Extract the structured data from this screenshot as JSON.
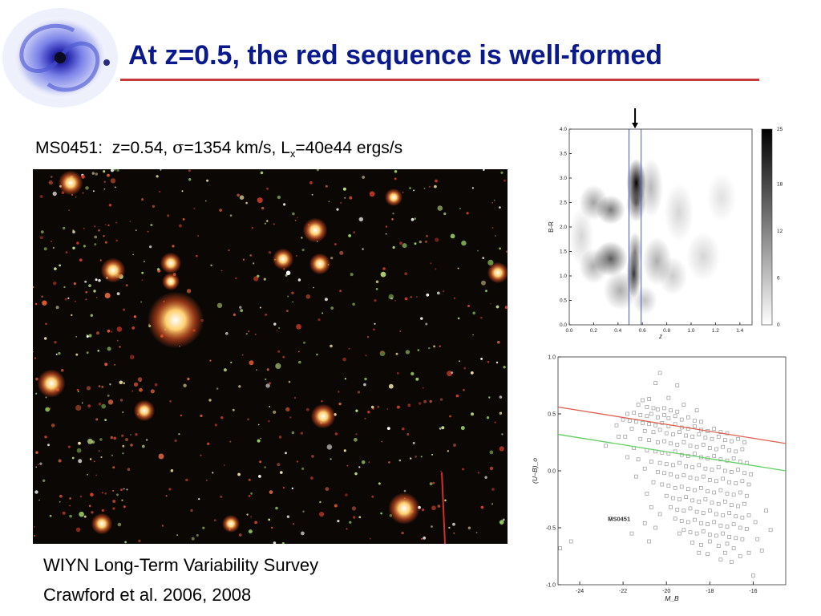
{
  "slide": {
    "title": "At z=0.5, the red sequence is well-formed",
    "caption": {
      "cluster": "MS0451:",
      "redshift": "z=0.54,",
      "sigma_symbol": "σ",
      "sigma": "=1354 km/s, L",
      "lx_sub": "x",
      "lx": "=40e44 ergs/s"
    },
    "credit_line1": "WIYN Long-Term Variability Survey",
    "credit_line2": "Crawford et al.  2006, 2008"
  },
  "colors": {
    "title": "#0a1a8c",
    "rule": "#c83a3a",
    "red_line": "#e06050",
    "green_line": "#60d060",
    "cut_line": "#4a5ad0"
  },
  "chart_data": [
    {
      "type": "heatmap",
      "xlabel": "z",
      "ylabel": "B-R",
      "xlim": [
        0.0,
        1.5
      ],
      "ylim": [
        0.0,
        4.0
      ],
      "x_ticks": [
        "0.0",
        "0.2",
        "0.4",
        "0.6",
        "0.8",
        "1.0",
        "1.2",
        "1.4"
      ],
      "y_ticks": [
        "0.0",
        "0.5",
        "1.0",
        "1.5",
        "2.0",
        "2.5",
        "3.0",
        "3.5",
        "4.0"
      ],
      "colorbar_ticks": [
        "0",
        "6",
        "12",
        "18",
        "25"
      ],
      "colorbar_range": [
        0,
        25
      ],
      "redshift_cuts": [
        0.49,
        0.59
      ],
      "marker_z": 0.54,
      "blobs": [
        {
          "z": 0.55,
          "br": 2.9,
          "sz": 0.04,
          "sbr": 0.25,
          "v": 25
        },
        {
          "z": 0.55,
          "br": 2.5,
          "sz": 0.04,
          "sbr": 0.2,
          "v": 15
        },
        {
          "z": 0.53,
          "br": 1.05,
          "sz": 0.03,
          "sbr": 0.25,
          "v": 20
        },
        {
          "z": 0.54,
          "br": 1.5,
          "sz": 0.03,
          "sbr": 0.2,
          "v": 12
        },
        {
          "z": 0.34,
          "br": 1.35,
          "sz": 0.07,
          "sbr": 0.18,
          "v": 16
        },
        {
          "z": 0.34,
          "br": 2.35,
          "sz": 0.06,
          "sbr": 0.15,
          "v": 13
        },
        {
          "z": 0.2,
          "br": 2.5,
          "sz": 0.06,
          "sbr": 0.18,
          "v": 9
        },
        {
          "z": 0.2,
          "br": 1.2,
          "sz": 0.06,
          "sbr": 0.18,
          "v": 8
        },
        {
          "z": 0.42,
          "br": 0.7,
          "sz": 0.07,
          "sbr": 0.2,
          "v": 8
        },
        {
          "z": 0.67,
          "br": 2.8,
          "sz": 0.05,
          "sbr": 0.3,
          "v": 7
        },
        {
          "z": 0.72,
          "br": 1.3,
          "sz": 0.06,
          "sbr": 0.25,
          "v": 8
        },
        {
          "z": 0.62,
          "br": 0.5,
          "sz": 0.05,
          "sbr": 0.15,
          "v": 6
        },
        {
          "z": 0.85,
          "br": 1.0,
          "sz": 0.06,
          "sbr": 0.2,
          "v": 5
        },
        {
          "z": 0.9,
          "br": 2.3,
          "sz": 0.06,
          "sbr": 0.3,
          "v": 4
        },
        {
          "z": 1.1,
          "br": 1.4,
          "sz": 0.07,
          "sbr": 0.25,
          "v": 4
        },
        {
          "z": 0.1,
          "br": 1.8,
          "sz": 0.05,
          "sbr": 0.3,
          "v": 4
        },
        {
          "z": 1.25,
          "br": 2.6,
          "sz": 0.06,
          "sbr": 0.25,
          "v": 3
        }
      ]
    },
    {
      "type": "scatter",
      "xlabel": "M_B",
      "ylabel": "(U−B)_o",
      "xlim": [
        -25,
        -14.5
      ],
      "ylim": [
        -1.0,
        1.0
      ],
      "x_ticks": [
        -24,
        -22,
        -20,
        -18,
        -16
      ],
      "y_ticks": [
        1.0,
        0.5,
        0.0,
        -0.5,
        -1.0
      ],
      "annotation": "MS0451",
      "red_line": {
        "x": [
          -25,
          -14.5
        ],
        "y": [
          0.56,
          0.24
        ]
      },
      "green_line": {
        "x": [
          -25,
          -14.5
        ],
        "y": [
          0.32,
          0.0
        ]
      },
      "points": [
        [
          -20.3,
          0.86
        ],
        [
          -20.5,
          0.77
        ],
        [
          -19.5,
          0.75
        ],
        [
          -21.3,
          0.58
        ],
        [
          -20.9,
          0.56
        ],
        [
          -20.6,
          0.55
        ],
        [
          -20.4,
          0.54
        ],
        [
          -20.1,
          0.55
        ],
        [
          -19.8,
          0.53
        ],
        [
          -19.5,
          0.52
        ],
        [
          -21.8,
          0.5
        ],
        [
          -21.5,
          0.51
        ],
        [
          -21.2,
          0.49
        ],
        [
          -20.9,
          0.48
        ],
        [
          -20.7,
          0.5
        ],
        [
          -20.4,
          0.47
        ],
        [
          -20.1,
          0.49
        ],
        [
          -19.9,
          0.46
        ],
        [
          -19.6,
          0.48
        ],
        [
          -19.3,
          0.45
        ],
        [
          -19.0,
          0.47
        ],
        [
          -18.7,
          0.44
        ],
        [
          -18.4,
          0.43
        ],
        [
          -22.0,
          0.45
        ],
        [
          -21.7,
          0.44
        ],
        [
          -21.4,
          0.43
        ],
        [
          -21.1,
          0.42
        ],
        [
          -20.8,
          0.41
        ],
        [
          -20.5,
          0.4
        ],
        [
          -20.2,
          0.42
        ],
        [
          -19.9,
          0.39
        ],
        [
          -19.6,
          0.41
        ],
        [
          -19.3,
          0.38
        ],
        [
          -19.0,
          0.37
        ],
        [
          -18.7,
          0.39
        ],
        [
          -18.4,
          0.36
        ],
        [
          -18.1,
          0.35
        ],
        [
          -17.8,
          0.37
        ],
        [
          -17.5,
          0.34
        ],
        [
          -17.2,
          0.33
        ],
        [
          -22.3,
          0.4
        ],
        [
          -21.6,
          0.37
        ],
        [
          -21.0,
          0.35
        ],
        [
          -20.6,
          0.34
        ],
        [
          -20.3,
          0.36
        ],
        [
          -20.0,
          0.33
        ],
        [
          -19.7,
          0.32
        ],
        [
          -19.4,
          0.34
        ],
        [
          -19.1,
          0.31
        ],
        [
          -18.8,
          0.3
        ],
        [
          -18.5,
          0.32
        ],
        [
          -18.2,
          0.29
        ],
        [
          -17.9,
          0.28
        ],
        [
          -17.6,
          0.3
        ],
        [
          -17.3,
          0.27
        ],
        [
          -17.0,
          0.26
        ],
        [
          -16.7,
          0.28
        ],
        [
          -16.4,
          0.25
        ],
        [
          -21.9,
          0.3
        ],
        [
          -21.2,
          0.28
        ],
        [
          -20.8,
          0.27
        ],
        [
          -20.4,
          0.25
        ],
        [
          -20.1,
          0.26
        ],
        [
          -19.8,
          0.24
        ],
        [
          -19.5,
          0.23
        ],
        [
          -19.2,
          0.25
        ],
        [
          -18.9,
          0.22
        ],
        [
          -18.6,
          0.21
        ],
        [
          -18.3,
          0.23
        ],
        [
          -18.0,
          0.2
        ],
        [
          -17.7,
          0.19
        ],
        [
          -17.4,
          0.21
        ],
        [
          -17.1,
          0.18
        ],
        [
          -16.8,
          0.17
        ],
        [
          -16.5,
          0.19
        ],
        [
          -22.8,
          0.22
        ],
        [
          -21.5,
          0.2
        ],
        [
          -20.9,
          0.18
        ],
        [
          -20.5,
          0.17
        ],
        [
          -20.2,
          0.16
        ],
        [
          -19.9,
          0.15
        ],
        [
          -19.6,
          0.17
        ],
        [
          -19.3,
          0.14
        ],
        [
          -19.0,
          0.13
        ],
        [
          -18.7,
          0.15
        ],
        [
          -18.4,
          0.12
        ],
        [
          -18.1,
          0.11
        ],
        [
          -17.8,
          0.13
        ],
        [
          -17.5,
          0.1
        ],
        [
          -17.2,
          0.09
        ],
        [
          -16.9,
          0.11
        ],
        [
          -16.6,
          0.08
        ],
        [
          -16.3,
          0.07
        ],
        [
          -21.3,
          0.1
        ],
        [
          -20.7,
          0.08
        ],
        [
          -20.3,
          0.07
        ],
        [
          -20.0,
          0.06
        ],
        [
          -19.7,
          0.05
        ],
        [
          -19.4,
          0.07
        ],
        [
          -19.1,
          0.04
        ],
        [
          -18.8,
          0.03
        ],
        [
          -18.5,
          0.05
        ],
        [
          -18.2,
          0.02
        ],
        [
          -17.9,
          0.01
        ],
        [
          -17.6,
          0.03
        ],
        [
          -17.3,
          0.0
        ],
        [
          -17.0,
          -0.01
        ],
        [
          -16.7,
          0.01
        ],
        [
          -16.4,
          -0.02
        ],
        [
          -16.1,
          -0.03
        ],
        [
          -21.0,
          0.02
        ],
        [
          -20.4,
          -0.01
        ],
        [
          -20.1,
          -0.02
        ],
        [
          -19.8,
          -0.03
        ],
        [
          -19.5,
          -0.05
        ],
        [
          -19.2,
          -0.04
        ],
        [
          -18.9,
          -0.06
        ],
        [
          -18.6,
          -0.07
        ],
        [
          -18.3,
          -0.05
        ],
        [
          -18.0,
          -0.08
        ],
        [
          -17.7,
          -0.09
        ],
        [
          -17.4,
          -0.07
        ],
        [
          -17.1,
          -0.1
        ],
        [
          -16.8,
          -0.11
        ],
        [
          -16.5,
          -0.09
        ],
        [
          -16.2,
          -0.12
        ],
        [
          -20.6,
          -0.1
        ],
        [
          -20.2,
          -0.12
        ],
        [
          -19.9,
          -0.13
        ],
        [
          -19.6,
          -0.15
        ],
        [
          -19.3,
          -0.14
        ],
        [
          -19.0,
          -0.16
        ],
        [
          -18.7,
          -0.17
        ],
        [
          -18.4,
          -0.15
        ],
        [
          -18.1,
          -0.18
        ],
        [
          -17.8,
          -0.19
        ],
        [
          -17.5,
          -0.17
        ],
        [
          -17.2,
          -0.2
        ],
        [
          -16.9,
          -0.21
        ],
        [
          -16.6,
          -0.19
        ],
        [
          -16.3,
          -0.22
        ],
        [
          -20.0,
          -0.22
        ],
        [
          -19.7,
          -0.24
        ],
        [
          -19.4,
          -0.25
        ],
        [
          -19.1,
          -0.23
        ],
        [
          -18.8,
          -0.26
        ],
        [
          -18.5,
          -0.27
        ],
        [
          -18.2,
          -0.25
        ],
        [
          -17.9,
          -0.28
        ],
        [
          -17.6,
          -0.29
        ],
        [
          -17.3,
          -0.27
        ],
        [
          -17.0,
          -0.3
        ],
        [
          -16.7,
          -0.31
        ],
        [
          -16.4,
          -0.29
        ],
        [
          -19.8,
          -0.32
        ],
        [
          -19.5,
          -0.34
        ],
        [
          -19.2,
          -0.35
        ],
        [
          -18.9,
          -0.33
        ],
        [
          -18.6,
          -0.36
        ],
        [
          -18.3,
          -0.37
        ],
        [
          -18.0,
          -0.35
        ],
        [
          -17.7,
          -0.38
        ],
        [
          -17.4,
          -0.39
        ],
        [
          -17.1,
          -0.37
        ],
        [
          -16.8,
          -0.4
        ],
        [
          -16.5,
          -0.41
        ],
        [
          -16.2,
          -0.39
        ],
        [
          -19.6,
          -0.42
        ],
        [
          -19.3,
          -0.44
        ],
        [
          -19.0,
          -0.45
        ],
        [
          -18.7,
          -0.43
        ],
        [
          -18.4,
          -0.46
        ],
        [
          -18.1,
          -0.47
        ],
        [
          -17.8,
          -0.45
        ],
        [
          -17.5,
          -0.48
        ],
        [
          -17.2,
          -0.49
        ],
        [
          -16.9,
          -0.47
        ],
        [
          -16.6,
          -0.5
        ],
        [
          -16.3,
          -0.51
        ],
        [
          -19.2,
          -0.52
        ],
        [
          -18.9,
          -0.54
        ],
        [
          -18.6,
          -0.55
        ],
        [
          -18.3,
          -0.53
        ],
        [
          -18.0,
          -0.56
        ],
        [
          -17.7,
          -0.57
        ],
        [
          -17.4,
          -0.55
        ],
        [
          -17.1,
          -0.58
        ],
        [
          -16.8,
          -0.59
        ],
        [
          -16.5,
          -0.6
        ],
        [
          -18.8,
          -0.63
        ],
        [
          -18.4,
          -0.65
        ],
        [
          -18.0,
          -0.62
        ],
        [
          -17.6,
          -0.66
        ],
        [
          -17.2,
          -0.64
        ],
        [
          -16.9,
          -0.68
        ],
        [
          -18.1,
          -0.73
        ],
        [
          -17.5,
          -0.78
        ],
        [
          -16.2,
          -0.72
        ],
        [
          -15.8,
          -0.6
        ],
        [
          -15.6,
          -0.7
        ],
        [
          -16.0,
          -0.92
        ],
        [
          -17.0,
          -0.8
        ],
        [
          -22.6,
          -0.42
        ],
        [
          -24.4,
          -0.62
        ],
        [
          -24.9,
          -0.68
        ],
        [
          -21.6,
          -0.55
        ],
        [
          -21.0,
          -0.46
        ],
        [
          -20.7,
          -0.32
        ],
        [
          -20.9,
          -0.2
        ],
        [
          -21.4,
          -0.05
        ],
        [
          -21.8,
          0.12
        ],
        [
          -22.2,
          0.3
        ],
        [
          -19.4,
          -0.55
        ],
        [
          -18.5,
          -0.72
        ],
        [
          -17.3,
          -0.72
        ],
        [
          -16.6,
          -0.75
        ],
        [
          -15.9,
          -0.45
        ],
        [
          -15.4,
          -0.35
        ],
        [
          -15.2,
          -0.52
        ],
        [
          -20.5,
          -0.5
        ],
        [
          -20.3,
          -0.38
        ],
        [
          -20.8,
          -0.62
        ],
        [
          -19.9,
          0.64
        ],
        [
          -19.2,
          0.58
        ],
        [
          -18.6,
          0.53
        ],
        [
          -20.8,
          0.63
        ],
        [
          -21.1,
          0.62
        ]
      ]
    }
  ]
}
